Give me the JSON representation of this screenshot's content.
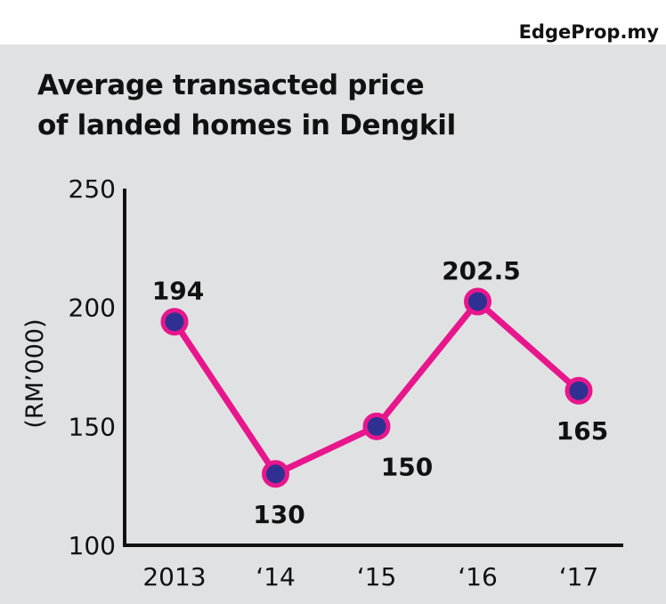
{
  "brand": "EdgeProp.my",
  "chart_data": {
    "type": "line",
    "title_line1": "Average transacted price",
    "title_line2": "of landed homes in Dengkil",
    "xlabel": "",
    "ylabel": "(RM’000)",
    "categories": [
      "2013",
      "‘14",
      "‘15",
      "‘16",
      "‘17"
    ],
    "values": [
      194,
      130,
      150,
      202.5,
      165
    ],
    "value_labels": [
      "194",
      "130",
      "150",
      "202.5",
      "165"
    ],
    "label_positions": [
      "above",
      "below",
      "below",
      "above",
      "below"
    ],
    "ylim": [
      100,
      250
    ],
    "yticks": [
      100,
      150,
      200,
      250
    ],
    "ytick_labels": [
      "100",
      "150",
      "200",
      "250"
    ],
    "grid": false,
    "colors": {
      "line": "#e8168c",
      "marker_fill": "#2e3192",
      "marker_stroke": "#e8168c",
      "axis": "#111111",
      "panel": "#e0e1e3"
    }
  }
}
